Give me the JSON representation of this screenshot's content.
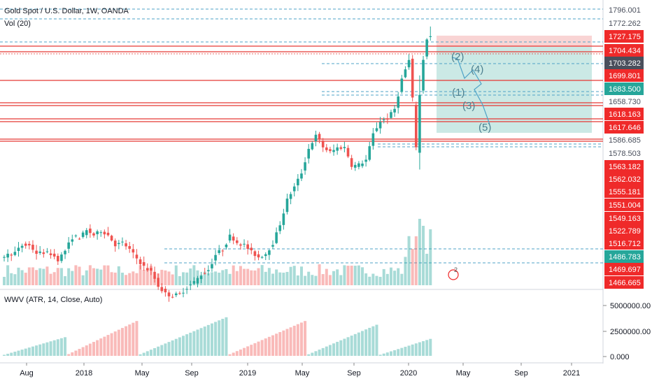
{
  "header": {
    "symbol_line": "Gold Spot / U.S. Dollar, 1W, OANDA",
    "volume_label": "Vol (20)"
  },
  "indicator": {
    "label": "WWV (ATR, 14, Close, Auto)"
  },
  "price_axis_labels": [
    "1796.001",
    "1772.262",
    "1727.175",
    "1704.434",
    "1703.282",
    "1699.801",
    "1683.500",
    "1658.730",
    "1618.163",
    "1617.646",
    "1586.685",
    "1578.503",
    "1563.182",
    "1562.032",
    "1555.181",
    "1551.004",
    "1549.163",
    "1522.789",
    "1516.712",
    "1486.783",
    "1469.697",
    "1466.665"
  ],
  "indicator_axis_labels": [
    "5000000.00",
    "2500000.00",
    "0.000"
  ],
  "time_axis_labels": [
    "Aug",
    "2018",
    "May",
    "Sep",
    "2019",
    "May",
    "Sep",
    "2020",
    "May",
    "Sep",
    "2021"
  ],
  "wave_labels": [
    "(1)",
    "(2)",
    "(3)",
    "(4)",
    "(5)"
  ],
  "colors": {
    "up": "#26a69a",
    "down": "#ef5350",
    "level_line": "#e53935",
    "dashed": "#4fa3c7",
    "zone_red": "#f7c5c5",
    "zone_green": "#b9e2dc",
    "axis_red": "#ef2a2a",
    "axis_dark": "#4a4f5c",
    "axis_teal": "#26a69a",
    "wave_text": "#4c7f8f"
  },
  "chart_data": {
    "type": "candlestick",
    "title": "Gold Spot / U.S. Dollar, 1W, OANDA",
    "xlabel": "",
    "ylabel": "",
    "ylim": [
      1466,
      1800
    ],
    "x_ticks": [
      "Aug",
      "2018",
      "May",
      "Sep",
      "2019",
      "May",
      "Sep",
      "2020",
      "May",
      "Sep",
      "2021"
    ],
    "horizontal_levels": [
      1704.434,
      1699.801,
      1658.73,
      1618.163,
      1617.646,
      1586.685
    ],
    "trend_series": [
      [
        0,
        1276
      ],
      [
        4,
        1285
      ],
      [
        6,
        1300
      ],
      [
        8,
        1299
      ],
      [
        10,
        1283
      ],
      [
        12,
        1285
      ],
      [
        14,
        1282
      ],
      [
        16,
        1270
      ],
      [
        18,
        1290
      ],
      [
        20,
        1317
      ],
      [
        22,
        1316
      ],
      [
        24,
        1330
      ],
      [
        26,
        1320
      ],
      [
        28,
        1330
      ],
      [
        30,
        1320
      ],
      [
        32,
        1300
      ],
      [
        34,
        1305
      ],
      [
        36,
        1290
      ],
      [
        38,
        1272
      ],
      [
        40,
        1255
      ],
      [
        42,
        1245
      ],
      [
        44,
        1215
      ],
      [
        46,
        1200
      ],
      [
        48,
        1196
      ],
      [
        50,
        1200
      ],
      [
        52,
        1214
      ],
      [
        54,
        1225
      ],
      [
        56,
        1240
      ],
      [
        58,
        1250
      ],
      [
        60,
        1282
      ],
      [
        62,
        1292
      ],
      [
        64,
        1320
      ],
      [
        66,
        1305
      ],
      [
        68,
        1300
      ],
      [
        70,
        1285
      ],
      [
        72,
        1275
      ],
      [
        74,
        1283
      ],
      [
        76,
        1305
      ],
      [
        78,
        1345
      ],
      [
        80,
        1395
      ],
      [
        82,
        1420
      ],
      [
        84,
        1450
      ],
      [
        86,
        1500
      ],
      [
        88,
        1525
      ],
      [
        90,
        1500
      ],
      [
        92,
        1490
      ],
      [
        94,
        1500
      ],
      [
        96,
        1500
      ],
      [
        98,
        1462
      ],
      [
        100,
        1465
      ],
      [
        102,
        1475
      ],
      [
        104,
        1530
      ],
      [
        106,
        1555
      ],
      [
        108,
        1560
      ],
      [
        110,
        1580
      ],
      [
        112,
        1643
      ],
      [
        114,
        1680
      ],
      [
        115,
        1590
      ],
      [
        116,
        1493
      ],
      [
        117,
        1620
      ],
      [
        118,
        1688
      ],
      [
        119,
        1727
      ]
    ],
    "wwv_series": [
      {
        "name": "up",
        "count": 18,
        "max": 0.3
      },
      {
        "name": "down",
        "count": 20,
        "max": 0.56
      },
      {
        "name": "up",
        "count": 25,
        "max": 0.62
      },
      {
        "name": "down",
        "count": 22,
        "max": 0.56
      },
      {
        "name": "up",
        "count": 20,
        "max": 0.5
      },
      {
        "name": "up",
        "count": 55,
        "max": 1.0
      }
    ]
  }
}
